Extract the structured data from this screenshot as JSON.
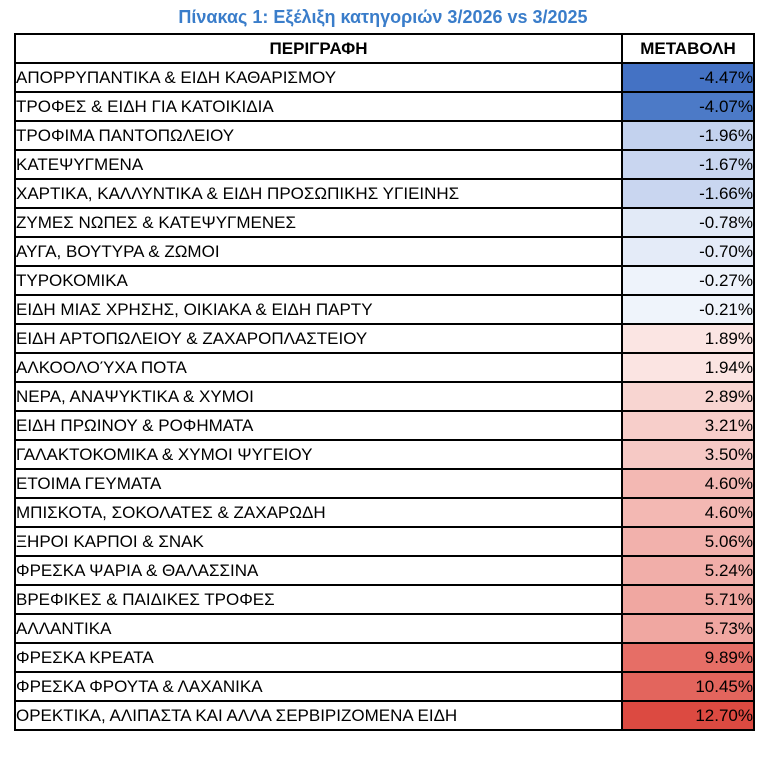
{
  "title": {
    "text": "Πίνακας 1: Εξέλιξη κατηγοριών 3/2026 vs 3/2025",
    "color": "#3A7DCA"
  },
  "table": {
    "headers": {
      "description": "ΠΕΡΙΓΡΑΦΗ",
      "change": "ΜΕΤΑΒΟΛΗ"
    },
    "rows": [
      {
        "category": "ΑΠΟΡΡΥΠΑΝΤΙΚΑ & ΕΙΔΗ ΚΑΘΑΡΙΣΜΟΥ",
        "change": "-4.47%",
        "color": "#4472C4"
      },
      {
        "category": "ΤΡΟΦΕΣ & ΕΙΔΗ ΓΙΑ ΚΑΤΟΙΚΙΔΙΑ",
        "change": "-4.07%",
        "color": "#4C7AC7"
      },
      {
        "category": "ΤΡΟΦΙΜΑ ΠΑΝΤΟΠΩΛΕΙΟΥ",
        "change": "-1.96%",
        "color": "#C3D2EE"
      },
      {
        "category": "ΚΑΤΕΨΥΓΜΕΝΑ",
        "change": "-1.67%",
        "color": "#C9D6F0"
      },
      {
        "category": "ΧΑΡΤΙΚΑ, ΚΑΛΛΥΝΤΙΚΑ & ΕΙΔΗ ΠΡΟΣΩΠΙΚΗΣ ΥΓΙΕΙΝΗΣ",
        "change": "-1.66%",
        "color": "#C9D6F0"
      },
      {
        "category": "ΖΥΜΕΣ ΝΩΠΕΣ & ΚΑΤΕΨΥΓΜΕΝΕΣ",
        "change": "-0.78%",
        "color": "#E2EAF7"
      },
      {
        "category": "ΑΥΓΑ, ΒΟΥΤΥΡΑ & ΖΩΜΟΙ",
        "change": "-0.70%",
        "color": "#E4EBF8"
      },
      {
        "category": "ΤΥΡΟΚΟΜΙΚΑ",
        "change": "-0.27%",
        "color": "#EEF3FB"
      },
      {
        "category": "ΕΙΔΗ ΜΙΑΣ ΧΡΗΣΗΣ, ΟΙΚΙΑΚΑ & ΕΙΔΗ ΠΑΡΤΥ",
        "change": "-0.21%",
        "color": "#EFF4FB"
      },
      {
        "category": "ΕΙΔΗ ΑΡΤΟΠΩΛΕΙΟΥ & ΖΑΧΑΡΟΠΛΑΣΤΕΙΟΥ",
        "change": "1.89%",
        "color": "#FBE5E3"
      },
      {
        "category": "ΑΛΚΟΟΛΟΎΧΑ ΠΟΤΑ",
        "change": "1.94%",
        "color": "#FBE4E2"
      },
      {
        "category": "ΝΕΡΑ, ΑΝΑΨΥΚΤΙΚΑ & ΧΥΜΟΙ",
        "change": "2.89%",
        "color": "#F8D5D1"
      },
      {
        "category": "ΕΙΔΗ ΠΡΩΙΝΟΥ & ΡΟΦΗΜΑΤΑ",
        "change": "3.21%",
        "color": "#F7CECA"
      },
      {
        "category": "ΓΑΛΑΚΤΟΚΟΜΙΚΑ & ΧΥΜΟΙ ΨΥΓΕΙΟΥ",
        "change": "3.50%",
        "color": "#F6C9C5"
      },
      {
        "category": "ΕΤΟΙΜΑ ΓΕΥΜΑΤΑ",
        "change": "4.60%",
        "color": "#F3B8B3"
      },
      {
        "category": "ΜΠΙΣΚΟΤΑ, ΣΟΚΟΛΑΤΕΣ & ΖΑΧΑΡΩΔΗ",
        "change": "4.60%",
        "color": "#F3B8B3"
      },
      {
        "category": "ΞΗΡΟΙ ΚΑΡΠΟΙ & ΣΝΑΚ",
        "change": "5.06%",
        "color": "#F2B1AC"
      },
      {
        "category": "ΦΡΕΣΚΑ ΨΑΡΙΑ & ΘΑΛΑΣΣΙΝΑ",
        "change": "5.24%",
        "color": "#F1AEA9"
      },
      {
        "category": "ΒΡΕΦΙΚΕΣ & ΠΑΙΔΙΚΕΣ ΤΡΟΦΕΣ",
        "change": "5.71%",
        "color": "#F0A7A1"
      },
      {
        "category": "ΑΛΛΑΝΤΙΚΑ",
        "change": "5.73%",
        "color": "#F0A7A1"
      },
      {
        "category": "ΦΡΕΣΚΑ ΚΡΕΑΤΑ",
        "change": "9.89%",
        "color": "#E66E66"
      },
      {
        "category": "ΦΡΕΣΚΑ ΦΡΟΥΤΑ & ΛΑΧΑΝΙΚΑ",
        "change": "10.45%",
        "color": "#E3655D"
      },
      {
        "category": "ΟΡΕΚΤΙΚΑ, ΑΛΙΠΑΣΤΑ ΚΑΙ ΑΛΛΑ ΣΕΡΒΙΡΙΖΟΜΕΝΑ ΕΙΔΗ",
        "change": "12.70%",
        "color": "#DC4A41"
      }
    ]
  },
  "chart_data": {
    "type": "table",
    "title": "Πίνακας 1: Εξέλιξη κατηγοριών 3/2026 vs 3/2025",
    "columns": [
      "ΠΕΡΙΓΡΑΦΗ",
      "ΜΕΤΑΒΟΛΗ"
    ],
    "categories": [
      "ΑΠΟΡΡΥΠΑΝΤΙΚΑ & ΕΙΔΗ ΚΑΘΑΡΙΣΜΟΥ",
      "ΤΡΟΦΕΣ & ΕΙΔΗ ΓΙΑ ΚΑΤΟΙΚΙΔΙΑ",
      "ΤΡΟΦΙΜΑ ΠΑΝΤΟΠΩΛΕΙΟΥ",
      "ΚΑΤΕΨΥΓΜΕΝΑ",
      "ΧΑΡΤΙΚΑ, ΚΑΛΛΥΝΤΙΚΑ & ΕΙΔΗ ΠΡΟΣΩΠΙΚΗΣ ΥΓΙΕΙΝΗΣ",
      "ΖΥΜΕΣ ΝΩΠΕΣ & ΚΑΤΕΨΥΓΜΕΝΕΣ",
      "ΑΥΓΑ, ΒΟΥΤΥΡΑ & ΖΩΜΟΙ",
      "ΤΥΡΟΚΟΜΙΚΑ",
      "ΕΙΔΗ ΜΙΑΣ ΧΡΗΣΗΣ, ΟΙΚΙΑΚΑ & ΕΙΔΗ ΠΑΡΤΥ",
      "ΕΙΔΗ ΑΡΤΟΠΩΛΕΙΟΥ & ΖΑΧΑΡΟΠΛΑΣΤΕΙΟΥ",
      "ΑΛΚΟΟΛΟΎΧΑ ΠΟΤΑ",
      "ΝΕΡΑ, ΑΝΑΨΥΚΤΙΚΑ & ΧΥΜΟΙ",
      "ΕΙΔΗ ΠΡΩΙΝΟΥ & ΡΟΦΗΜΑΤΑ",
      "ΓΑΛΑΚΤΟΚΟΜΙΚΑ & ΧΥΜΟΙ ΨΥΓΕΙΟΥ",
      "ΕΤΟΙΜΑ ΓΕΥΜΑΤΑ",
      "ΜΠΙΣΚΟΤΑ, ΣΟΚΟΛΑΤΕΣ & ΖΑΧΑΡΩΔΗ",
      "ΞΗΡΟΙ ΚΑΡΠΟΙ & ΣΝΑΚ",
      "ΦΡΕΣΚΑ ΨΑΡΙΑ & ΘΑΛΑΣΣΙΝΑ",
      "ΒΡΕΦΙΚΕΣ & ΠΑΙΔΙΚΕΣ ΤΡΟΦΕΣ",
      "ΑΛΛΑΝΤΙΚΑ",
      "ΦΡΕΣΚΑ ΚΡΕΑΤΑ",
      "ΦΡΕΣΚΑ ΦΡΟΥΤΑ & ΛΑΧΑΝΙΚΑ",
      "ΟΡΕΚΤΙΚΑ, ΑΛΙΠΑΣΤΑ ΚΑΙ ΑΛΛΑ ΣΕΡΒΙΡΙΖΟΜΕΝΑ ΕΙΔΗ"
    ],
    "values": [
      -4.47,
      -4.07,
      -1.96,
      -1.67,
      -1.66,
      -0.78,
      -0.7,
      -0.27,
      -0.21,
      1.89,
      1.94,
      2.89,
      3.21,
      3.5,
      4.6,
      4.6,
      5.06,
      5.24,
      5.71,
      5.73,
      9.89,
      10.45,
      12.7
    ],
    "value_unit": "%",
    "color_scale": {
      "min_color": "#4472C4",
      "mid_color": "#FFFFFF",
      "max_color": "#DC4A41",
      "midpoint_value": 0
    }
  }
}
